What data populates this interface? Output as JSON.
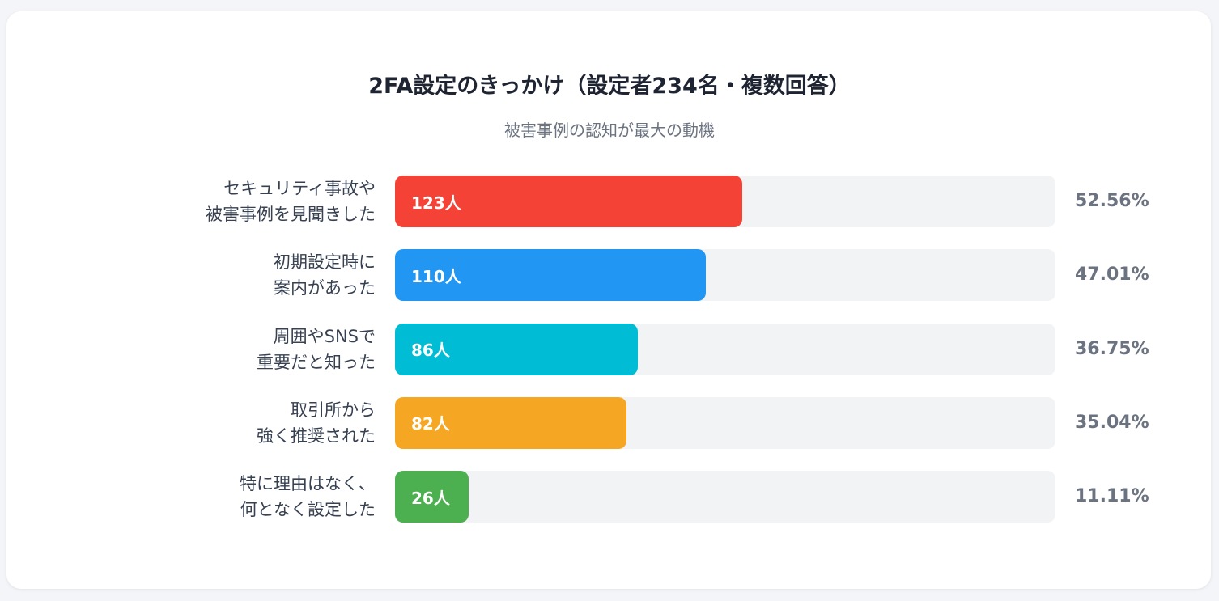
{
  "chart_data": {
    "type": "bar",
    "orientation": "horizontal",
    "title": "2FA設定のきっかけ（設定者234名・複数回答）",
    "subtitle": "被害事例の認知が最大の動機",
    "xlim": [
      0,
      100
    ],
    "bars": [
      {
        "label_lines": [
          "セキュリティ事故や",
          "被害事例を見聞きした"
        ],
        "count_label": "123人",
        "count": 123,
        "percent": 52.56,
        "percent_label": "52.56%",
        "color": "#f44336"
      },
      {
        "label_lines": [
          "初期設定時に",
          "案内があった"
        ],
        "count_label": "110人",
        "count": 110,
        "percent": 47.01,
        "percent_label": "47.01%",
        "color": "#2196f3"
      },
      {
        "label_lines": [
          "周囲やSNSで",
          "重要だと知った"
        ],
        "count_label": "86人",
        "count": 86,
        "percent": 36.75,
        "percent_label": "36.75%",
        "color": "#00bcd4"
      },
      {
        "label_lines": [
          "取引所から",
          "強く推奨された"
        ],
        "count_label": "82人",
        "count": 82,
        "percent": 35.04,
        "percent_label": "35.04%",
        "color": "#f5a623"
      },
      {
        "label_lines": [
          "特に理由はなく、",
          "何となく設定した"
        ],
        "count_label": "26人",
        "count": 26,
        "percent": 11.11,
        "percent_label": "11.11%",
        "color": "#4caf50"
      }
    ]
  }
}
